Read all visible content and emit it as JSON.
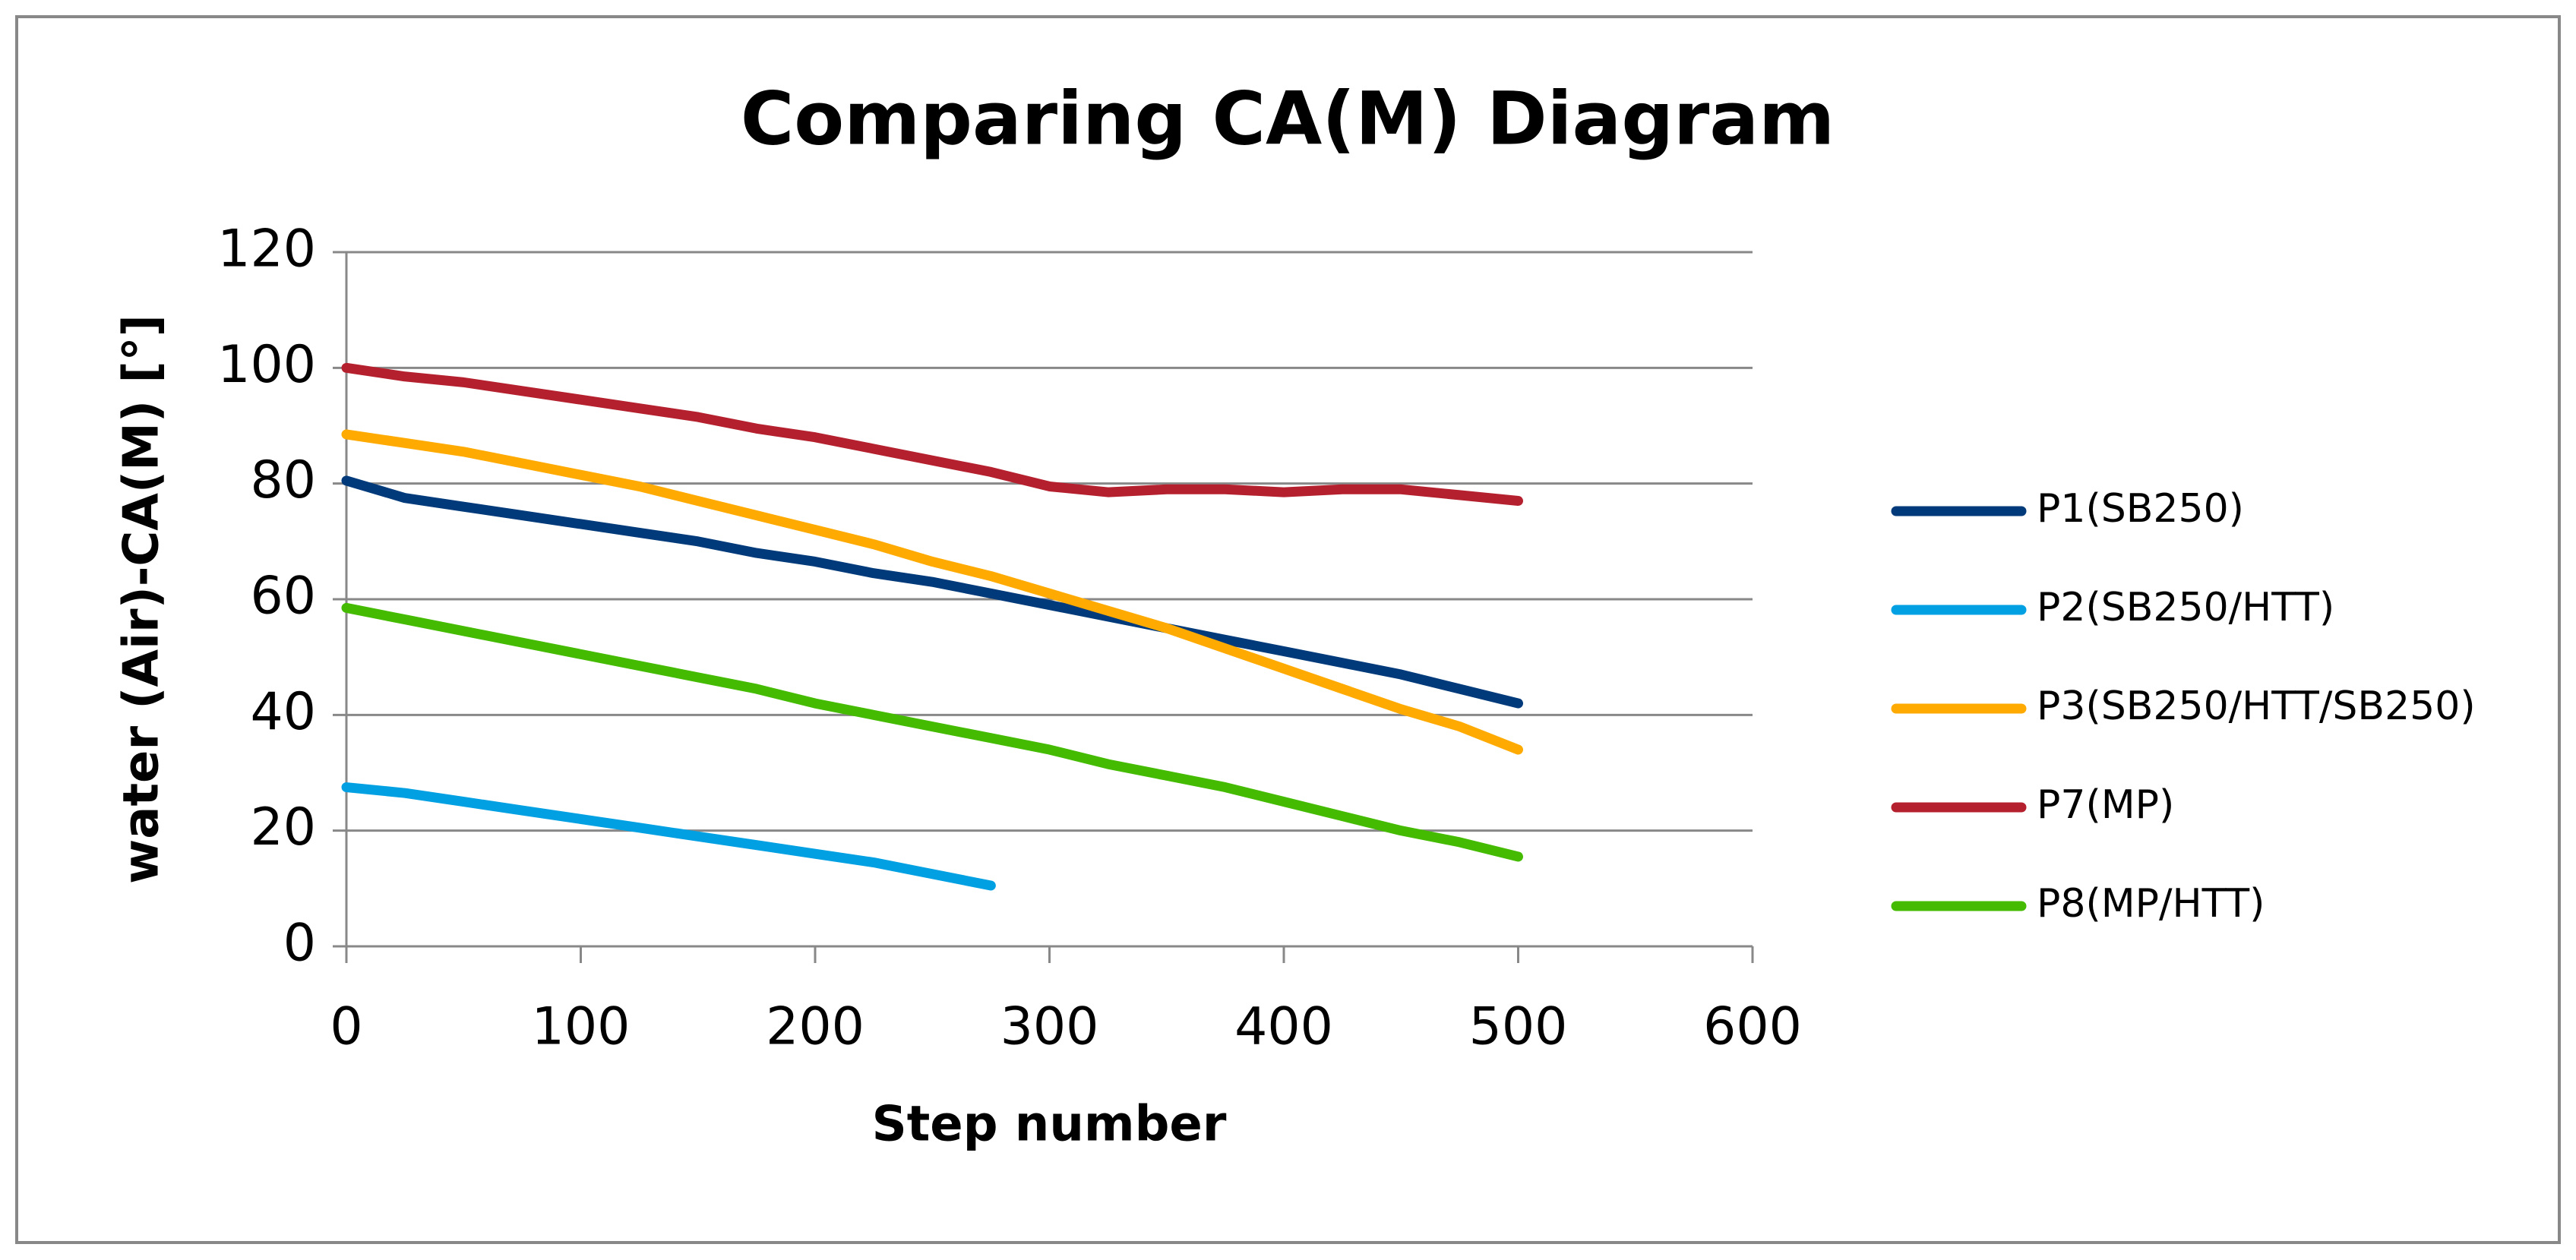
{
  "chart_data": {
    "type": "line",
    "title": "Comparing CA(M) Diagram",
    "x_label": "Step number",
    "y_label": "water (Air)-CA(M) [°]",
    "x": [
      0,
      25,
      50,
      75,
      100,
      125,
      150,
      175,
      200,
      225,
      250,
      275,
      300,
      325,
      350,
      375,
      400,
      425,
      450,
      475,
      500
    ],
    "series": [
      {
        "name": "P1(SB250)",
        "color": "#003a7a",
        "values": [
          80.5,
          77.5,
          76,
          74.5,
          73,
          71.5,
          70,
          68,
          66.5,
          64.5,
          63,
          61,
          59,
          57,
          55,
          53,
          51,
          49,
          47,
          44.5,
          42
        ]
      },
      {
        "name": "P2(SB250/HTT)",
        "color": "#00a0e3",
        "values": [
          27.5,
          26.5,
          25,
          23.5,
          22,
          20.5,
          19,
          17.5,
          16,
          14.5,
          12.5,
          10.5,
          null,
          null,
          null,
          null,
          null,
          null,
          null,
          null,
          null
        ]
      },
      {
        "name": "P3(SB250/HTT/SB250)",
        "color": "#ffaa00",
        "values": [
          88.5,
          87,
          85.5,
          83.5,
          81.5,
          79.5,
          77,
          74.5,
          72,
          69.5,
          66.5,
          64,
          61,
          58,
          55,
          51.5,
          48,
          44.5,
          41,
          38,
          34
        ]
      },
      {
        "name": "P7(MP)",
        "color": "#b5202e",
        "values": [
          100,
          98.5,
          97.5,
          96,
          94.5,
          93,
          91.5,
          89.5,
          88,
          86,
          84,
          82,
          79.5,
          78.5,
          79,
          79,
          78.5,
          79,
          79,
          78,
          77
        ]
      },
      {
        "name": "P8(MP/HTT)",
        "color": "#44bb00",
        "values": [
          58.5,
          56.5,
          54.5,
          52.5,
          50.5,
          48.5,
          46.5,
          44.5,
          42,
          40,
          38,
          36,
          34,
          31.5,
          29.5,
          27.5,
          25,
          22.5,
          20,
          18,
          15.5
        ]
      }
    ],
    "xlim": [
      0,
      600
    ],
    "xticks": [
      0,
      100,
      200,
      300,
      400,
      500,
      600
    ],
    "ylim": [
      0,
      120
    ],
    "yticks": [
      0,
      20,
      40,
      60,
      80,
      100,
      120
    ],
    "grid": true,
    "legend": "right"
  }
}
